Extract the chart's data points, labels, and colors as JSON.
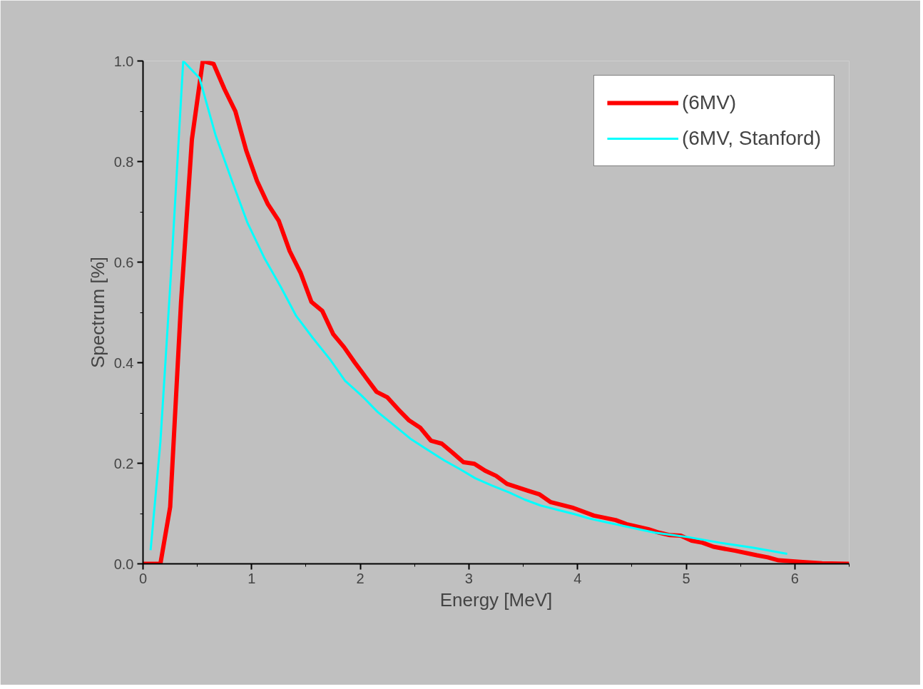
{
  "chart_data": {
    "type": "line",
    "xlabel": "Energy [MeV]",
    "ylabel": "Spectrum [%]",
    "xlim": [
      0,
      6.5
    ],
    "ylim": [
      0,
      1.0
    ],
    "xticks": [
      0,
      1,
      2,
      3,
      4,
      5,
      6
    ],
    "yticks": [
      {
        "value": 0,
        "label": "0.0"
      },
      {
        "value": 0.2,
        "label": "0.2"
      },
      {
        "value": 0.4,
        "label": "0.4"
      },
      {
        "value": 0.6,
        "label": "0.6"
      },
      {
        "value": 0.8,
        "label": "0.8"
      },
      {
        "value": 1.0,
        "label": "1.0"
      }
    ],
    "grid": false,
    "legend": "top right",
    "marker": "none",
    "line_style": "solid",
    "series": [
      {
        "name": "(6MV)",
        "color": "#ff0000",
        "x": [
          0,
          0.16,
          0.25,
          0.35,
          0.45,
          0.55,
          0.65,
          0.75,
          0.85,
          0.95,
          1.05,
          1.15,
          1.25,
          1.35,
          1.45,
          1.55,
          1.65,
          1.75,
          1.85,
          1.95,
          2.05,
          2.15,
          2.25,
          2.35,
          2.45,
          2.55,
          2.65,
          2.75,
          2.85,
          2.95,
          3.05,
          3.15,
          3.25,
          3.35,
          3.55,
          3.65,
          3.75,
          3.95,
          4.15,
          4.35,
          4.45,
          4.65,
          4.75,
          4.85,
          4.95,
          5.05,
          5.15,
          5.25,
          5.45,
          5.65,
          5.75,
          5.85,
          6.05,
          6.25,
          6.5
        ],
        "values": [
          0,
          0,
          0.113,
          0.52,
          0.844,
          1.0,
          0.994,
          0.944,
          0.9,
          0.822,
          0.761,
          0.715,
          0.682,
          0.622,
          0.579,
          0.521,
          0.503,
          0.457,
          0.431,
          0.4,
          0.371,
          0.342,
          0.331,
          0.307,
          0.285,
          0.271,
          0.245,
          0.239,
          0.221,
          0.202,
          0.199,
          0.185,
          0.175,
          0.159,
          0.145,
          0.138,
          0.123,
          0.112,
          0.096,
          0.087,
          0.079,
          0.069,
          0.062,
          0.057,
          0.056,
          0.046,
          0.042,
          0.034,
          0.026,
          0.017,
          0.013,
          0.007,
          0.004,
          0.001,
          0
        ]
      },
      {
        "name": "(6MV, Stanford)",
        "color": "#00ffff",
        "x": [
          0.07,
          0.16,
          0.26,
          0.37,
          0.52,
          0.67,
          0.82,
          0.96,
          1.12,
          1.27,
          1.41,
          1.56,
          1.72,
          1.86,
          2.01,
          2.16,
          2.32,
          2.46,
          2.61,
          2.77,
          2.92,
          3.06,
          3.21,
          3.37,
          3.51,
          3.66,
          3.82,
          3.97,
          4.11,
          4.41,
          4.71,
          5.02,
          5.31,
          5.62,
          5.93
        ],
        "values": [
          0.027,
          0.242,
          0.586,
          1.0,
          0.966,
          0.851,
          0.761,
          0.679,
          0.607,
          0.55,
          0.493,
          0.45,
          0.407,
          0.364,
          0.335,
          0.302,
          0.274,
          0.249,
          0.228,
          0.206,
          0.188,
          0.17,
          0.156,
          0.142,
          0.128,
          0.116,
          0.107,
          0.099,
          0.09,
          0.076,
          0.062,
          0.053,
          0.042,
          0.032,
          0.02
        ]
      }
    ]
  }
}
